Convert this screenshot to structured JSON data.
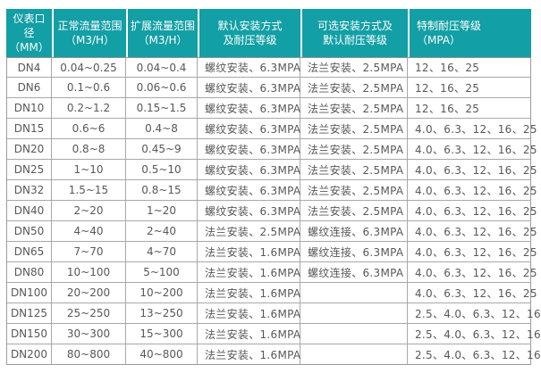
{
  "colors": {
    "header_bg": "#129FA5",
    "header_text": "#FFFFFF",
    "body_text": "#57585A",
    "border": "#A8A8A8"
  },
  "table": {
    "columns": [
      {
        "key": "dn",
        "line1": "仪表口径",
        "line2": "（MM）"
      },
      {
        "key": "normal-range",
        "line1": "正常流量范围",
        "line2": "（M3/H）"
      },
      {
        "key": "extended-range",
        "line1": "扩展流量范围",
        "line2": "（M3/H）"
      },
      {
        "key": "default-install",
        "line1": "默认安装方式",
        "line2": "及耐压等级"
      },
      {
        "key": "optional-install",
        "line1": "可选安装方式及",
        "line2": "默认耐压等级"
      },
      {
        "key": "special-pressure",
        "line1": "特制耐压等级",
        "line2": "（MPA）"
      }
    ],
    "rows": [
      [
        "DN4",
        "0.04~0.25",
        "0.04~0.4",
        "螺纹安装、6.3MPA",
        "法兰安装、2.5MPA",
        "12、16、25"
      ],
      [
        "DN6",
        "0.1~0.6",
        "0.06~0.6",
        "螺纹安装、6.3MPA",
        "法兰安装、2.5MPA",
        "12、16、25"
      ],
      [
        "DN10",
        "0.2~1.2",
        "0.15~1.5",
        "螺纹安装、6.3MPA",
        "法兰安装、2.5MPA",
        "12、16、25"
      ],
      [
        "DN15",
        "0.6~6",
        "0.4~8",
        "螺纹安装、6.3MPA",
        "法兰安装、2.5MPA",
        "4.0、6.3、12、16、25"
      ],
      [
        "DN20",
        "0.8~8",
        "0.45~9",
        "螺纹安装、6.3MPA",
        "法兰安装、2.5MPA",
        "4.0、6.3、12、16、25"
      ],
      [
        "DN25",
        "1~10",
        "0.5~10",
        "螺纹安装、6.3MPA",
        "法兰安装、2.5MPA",
        "4.0、6.3、12、16、25"
      ],
      [
        "DN32",
        "1.5~15",
        "0.8~15",
        "螺纹安装、6.3MPA",
        "法兰安装、2.5MPA",
        "4.0、6.3、12、16、25"
      ],
      [
        "DN40",
        "2~20",
        "1~20",
        "螺纹安装、6.3MPA",
        "法兰安装、2.5MPA",
        "4.0、6.3、12、16、25"
      ],
      [
        "DN50",
        "4~40",
        "2~40",
        "法兰安装、2.5MPA",
        "螺纹连接、6.3MPA",
        "4.0、6.3、12、16、25"
      ],
      [
        "DN65",
        "7~70",
        "4~70",
        "法兰安装、1.6MPA",
        "螺纹连接、6.3MPA",
        "4.0、6.3、12、16、25"
      ],
      [
        "DN80",
        "10~100",
        "5~100",
        "法兰安装、1.6MPA",
        "螺纹连接、6.3MPA",
        "4.0、6.3、12、16、25"
      ],
      [
        "DN100",
        "20~200",
        "10~200",
        "法兰安装、1.6MPA",
        "",
        "4.0、6.3、12、16、25"
      ],
      [
        "DN125",
        "25~250",
        "13~250",
        "法兰安装、1.6MPA",
        "",
        "2.5、4.0、6.3、12、16"
      ],
      [
        "DN150",
        "30~300",
        "15~300",
        "法兰安装、1.6MPA",
        "",
        "2.5、4.0、6.3、12、16"
      ],
      [
        "DN200",
        "80~800",
        "40~800",
        "法兰安装、1.6MPA",
        "",
        "2.5、4.0、6.3、12、16"
      ]
    ]
  }
}
